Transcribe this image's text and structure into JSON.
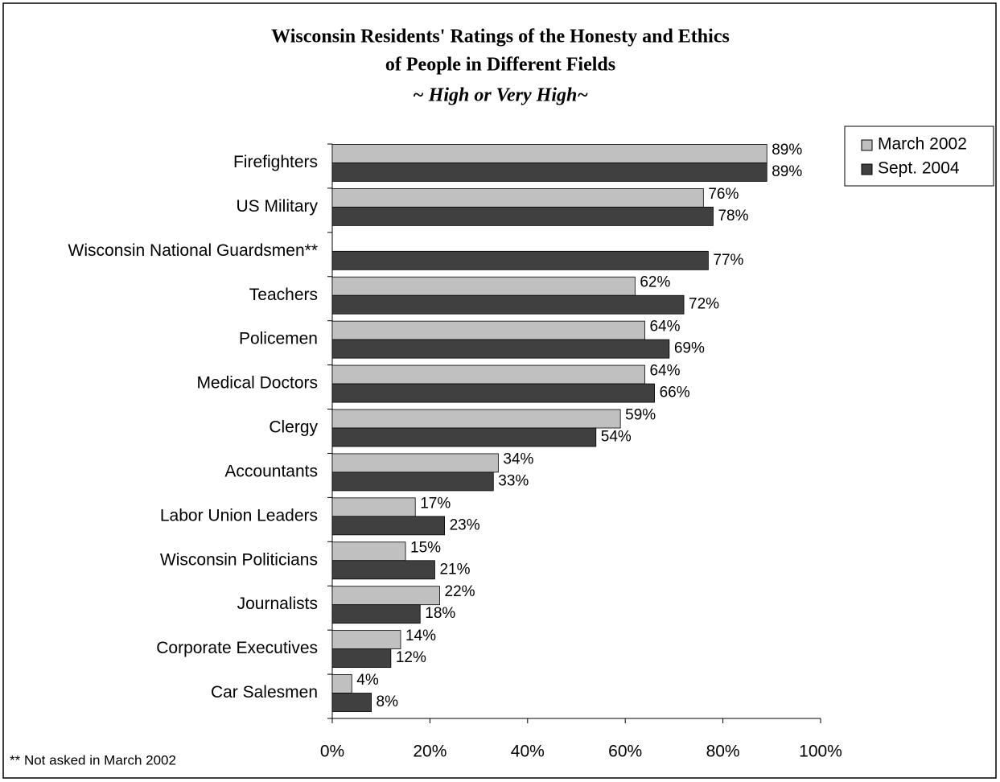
{
  "chart_data": {
    "type": "hbar",
    "title": [
      "Wisconsin Residents' Ratings of the Honesty and Ethics",
      "of People in Different Fields"
    ],
    "subtitle": "~ High or Very High~",
    "footnote": "** Not asked in March 2002",
    "categories": [
      "Firefighters",
      "US Military",
      "Wisconsin National Guardsmen**",
      "Teachers",
      "Policemen",
      "Medical Doctors",
      "Clergy",
      "Accountants",
      "Labor Union Leaders",
      "Wisconsin Politicians",
      "Journalists",
      "Corporate Executives",
      "Car Salesmen"
    ],
    "series": [
      {
        "name": "March 2002",
        "color": "#c0c0c0",
        "values": [
          89,
          76,
          null,
          62,
          64,
          64,
          59,
          34,
          17,
          15,
          22,
          14,
          4
        ],
        "value_labels": [
          "89%",
          "76%",
          null,
          "62%",
          "64%",
          "64%",
          "59%",
          "34%",
          "17%",
          "15%",
          "22%",
          "14%",
          "4%"
        ]
      },
      {
        "name": "Sept. 2004",
        "color": "#404040",
        "values": [
          89,
          78,
          77,
          72,
          69,
          66,
          54,
          33,
          23,
          21,
          18,
          12,
          8
        ],
        "value_labels": [
          "89%",
          "78%",
          "77%",
          "72%",
          "69%",
          "66%",
          "54%",
          "33%",
          "23%",
          "21%",
          "18%",
          "12%",
          "8%"
        ]
      }
    ],
    "xlim": [
      0,
      100
    ],
    "xticks": [
      {
        "value": 0,
        "label": "0%"
      },
      {
        "value": 20,
        "label": "20%"
      },
      {
        "value": 40,
        "label": "40%"
      },
      {
        "value": 60,
        "label": "60%"
      },
      {
        "value": 80,
        "label": "80%"
      },
      {
        "value": 100,
        "label": "100%"
      }
    ],
    "legend": "top-right"
  }
}
